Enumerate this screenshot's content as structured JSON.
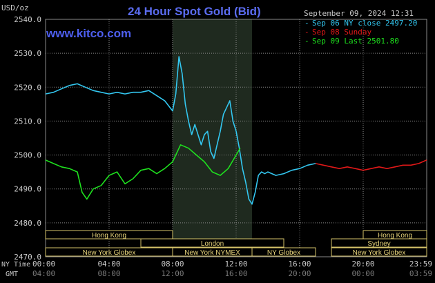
{
  "title": "24 Hour Spot Gold (Bid)",
  "site": "www.kitco.com",
  "unit": "USD/oz",
  "timestamp": "September 09, 2024 12:31",
  "colors": {
    "background": "#000000",
    "title": "#5b6cf0",
    "site": "#4e5ff0",
    "grid": "#8a8a8a",
    "text": "#c8c8c8",
    "sep06": "#33c7f0",
    "sep08": "#e01818",
    "sep09": "#1ee01e",
    "nymex_band": "#1f2a1f",
    "session_bar_fill": "#000000",
    "session_bar_text": "#e6d37a",
    "session_bar_border": "#d6c46a"
  },
  "legend": [
    {
      "marker": "-",
      "text": "Sep 06 NY close 2497.20",
      "color": "#33c7f0"
    },
    {
      "marker": "-",
      "text": "Sep 08 Sunday",
      "color": "#e01818"
    },
    {
      "marker": "-",
      "text": "Sep 09 Last 2501.80",
      "color": "#1ee01e"
    }
  ],
  "axis_labels": {
    "ny_time": "NY Time",
    "gmt": "GMT"
  },
  "sessions": [
    {
      "label": "Hong Kong",
      "start": 0,
      "end": 8,
      "row": 0
    },
    {
      "label": "London",
      "start": 6,
      "end": 15,
      "row": 1
    },
    {
      "label": "New York Globex",
      "start": 0,
      "end": 8,
      "row": 2
    },
    {
      "label": "New York NYMEX",
      "start": 8,
      "end": 13,
      "row": 2
    },
    {
      "label": "NY Globex",
      "start": 13,
      "end": 17,
      "row": 2
    },
    {
      "label": "Hong Kong",
      "start": 20,
      "end": 24,
      "row": 0
    },
    {
      "label": "Sydney",
      "start": 18,
      "end": 24,
      "row": 1
    },
    {
      "label": "New York Globex",
      "start": 18,
      "end": 24,
      "row": 2
    }
  ],
  "chart_data": {
    "type": "line",
    "title": "24 Hour Spot Gold (Bid)",
    "ylabel": "USD/oz",
    "ylim": [
      2470,
      2540
    ],
    "yticks": [
      "2470.0",
      "2480.0",
      "2490.0",
      "2500.0",
      "2510.0",
      "2520.0",
      "2530.0",
      "2540.0"
    ],
    "xlim": [
      0,
      24
    ],
    "xticks_ny": [
      "00:00",
      "04:00",
      "08:00",
      "12:00",
      "16:00",
      "20:00",
      "23:59"
    ],
    "xticks_gmt": [
      "04:00",
      "08:00",
      "12:00",
      "16:00",
      "20:00",
      "00:00",
      "03:59"
    ],
    "x_unit": "hours (NY time)",
    "nymex_shading": [
      8,
      13
    ],
    "series": [
      {
        "name": "Sep 06 NY close 2497.20",
        "color": "#33c7f0",
        "x": [
          0.0,
          0.5,
          1.0,
          1.5,
          2.0,
          2.5,
          3.0,
          3.5,
          4.0,
          4.5,
          5.0,
          5.5,
          6.0,
          6.5,
          7.0,
          7.5,
          8.0,
          8.2,
          8.4,
          8.6,
          8.8,
          9.0,
          9.2,
          9.4,
          9.6,
          9.8,
          10.0,
          10.2,
          10.4,
          10.6,
          10.8,
          11.0,
          11.2,
          11.4,
          11.6,
          11.8,
          12.0,
          12.2,
          12.4,
          12.6,
          12.8,
          13.0,
          13.2,
          13.4,
          13.6,
          13.8,
          14.0,
          14.5,
          15.0,
          15.5,
          16.0,
          16.5,
          17.0
        ],
        "values": [
          2518,
          2518.5,
          2519.5,
          2520.5,
          2521,
          2520,
          2519,
          2518.5,
          2518,
          2518.5,
          2518,
          2518.5,
          2518.5,
          2519,
          2517.5,
          2516,
          2513,
          2518,
          2529,
          2524,
          2515,
          2510,
          2506,
          2509,
          2506,
          2503,
          2506,
          2507,
          2501,
          2499,
          2503,
          2507,
          2512,
          2514,
          2516,
          2510,
          2507,
          2502,
          2496,
          2492,
          2487,
          2485.5,
          2489,
          2494,
          2495,
          2494.5,
          2495,
          2494,
          2494.5,
          2495.5,
          2496,
          2497,
          2497.5
        ]
      },
      {
        "name": "Sep 08 Sunday",
        "color": "#e01818",
        "x": [
          17.0,
          17.5,
          18.0,
          18.5,
          19.0,
          19.5,
          20.0,
          20.5,
          21.0,
          21.5,
          22.0,
          22.5,
          23.0,
          23.5,
          23.99
        ],
        "values": [
          2497.5,
          2497,
          2496.5,
          2496,
          2496.5,
          2496,
          2495.5,
          2496,
          2496.5,
          2496,
          2496.5,
          2497,
          2497,
          2497.5,
          2498.5
        ]
      },
      {
        "name": "Sep 09 Last 2501.80",
        "color": "#1ee01e",
        "x": [
          0.0,
          0.5,
          1.0,
          1.5,
          2.0,
          2.3,
          2.6,
          3.0,
          3.5,
          4.0,
          4.5,
          5.0,
          5.5,
          6.0,
          6.5,
          7.0,
          7.5,
          8.0,
          8.5,
          9.0,
          9.5,
          10.0,
          10.5,
          11.0,
          11.5,
          12.0,
          12.25
        ],
        "values": [
          2498.5,
          2497.5,
          2496.5,
          2496,
          2495,
          2489,
          2487,
          2490,
          2491,
          2494,
          2495,
          2491.5,
          2493,
          2495.5,
          2496,
          2494.5,
          2496,
          2498,
          2503,
          2502,
          2500,
          2498,
          2495,
          2494,
          2496,
          2500,
          2502
        ]
      }
    ]
  }
}
